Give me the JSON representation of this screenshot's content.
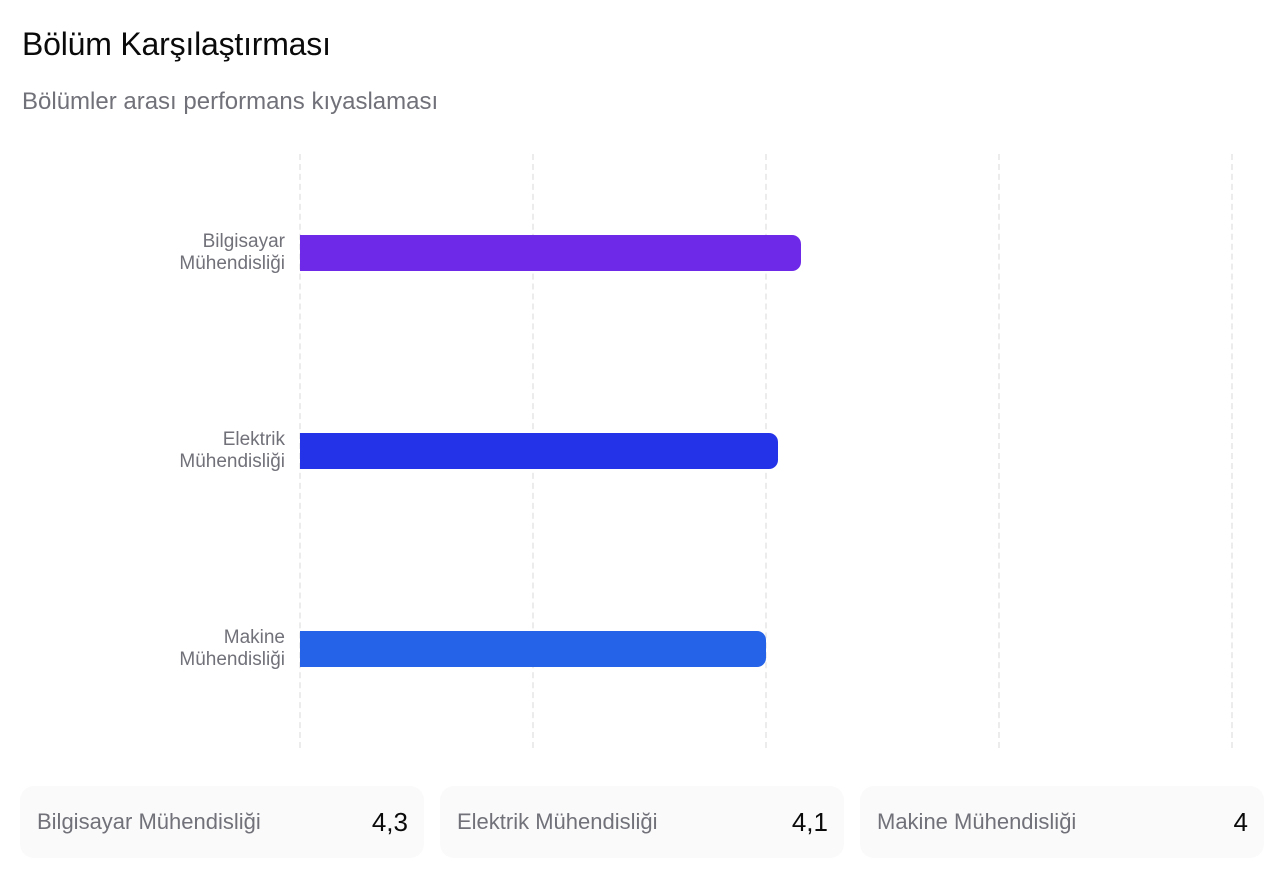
{
  "header": {
    "title": "Bölüm Karşılaştırması",
    "subtitle": "Bölümler arası performans kıyaslaması"
  },
  "chart_data": {
    "type": "bar",
    "orientation": "horizontal",
    "title": "Bölüm Karşılaştırması",
    "subtitle": "Bölümler arası performans kıyaslaması",
    "categories": [
      "Bilgisayar Mühendisliği",
      "Elektrik Mühendisliği",
      "Makine Mühendisliği"
    ],
    "category_lines": [
      [
        "Bilgisayar",
        "Mühendisliği"
      ],
      [
        "Elektrik",
        "Mühendisliği"
      ],
      [
        "Makine",
        "Mühendisliği"
      ]
    ],
    "values": [
      4.3,
      4.1,
      4.0
    ],
    "colors": [
      "#6d28e8",
      "#2533e8",
      "#2563e8"
    ],
    "xlim": [
      0,
      8
    ],
    "grid_ticks": [
      0,
      2,
      4,
      6,
      8
    ],
    "grid": "vertical-dashed",
    "xlabel": "",
    "ylabel": "",
    "legend": null
  },
  "summary_cards": [
    {
      "label": "Bilgisayar Mühendisliği",
      "value": "4,3"
    },
    {
      "label": "Elektrik Mühendisliği",
      "value": "4,1"
    },
    {
      "label": "Makine Mühendisliği",
      "value": "4"
    }
  ]
}
